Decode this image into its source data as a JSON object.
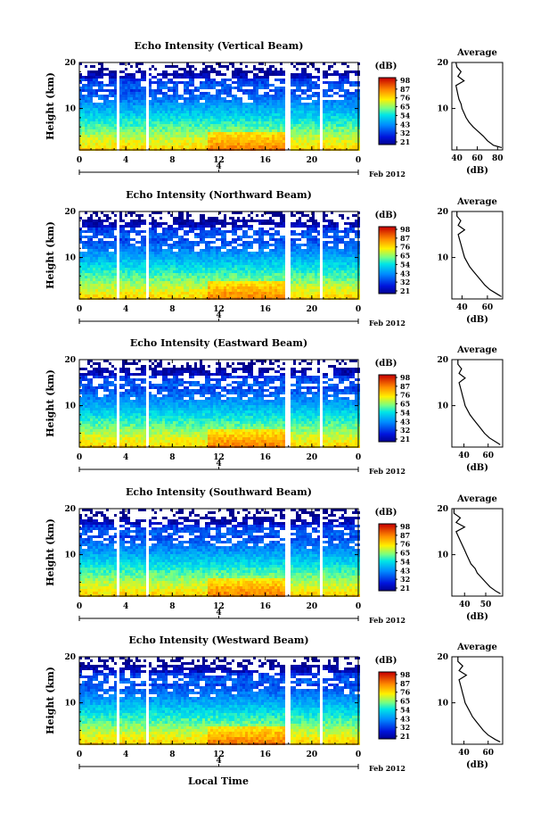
{
  "figure": {
    "date_label": "Feb 2012",
    "x_axis_title": "Local Time"
  },
  "chart_data": [
    {
      "type": "heatmap",
      "title": "Echo Intensity (Vertical Beam)",
      "ylabel": "Height (km)",
      "y_ticks": [
        "10",
        "20"
      ],
      "ylim": [
        1,
        20
      ],
      "x_ticks": [
        "0",
        "4",
        "8",
        "12",
        "16",
        "20",
        "0"
      ],
      "xlim": [
        0,
        24
      ],
      "date_marker": "4",
      "colorbar": {
        "unit": "(dB)",
        "ticks": [
          "98",
          "87",
          "76",
          "65",
          "54",
          "43",
          "32",
          "21"
        ],
        "range": [
          21,
          98
        ]
      },
      "gaps": [
        [
          3.2,
          3.5
        ],
        [
          5.7,
          6.0
        ],
        [
          17.6,
          18.1
        ],
        [
          20.6,
          20.9
        ]
      ],
      "profile": {
        "title": "Average",
        "xlabel": "(dB)",
        "x_ticks": [
          "40",
          "60",
          "80"
        ],
        "xlim": [
          35,
          85
        ],
        "heights": [
          1.5,
          2,
          3,
          4,
          5,
          6,
          7,
          8,
          9,
          10,
          11,
          12,
          13,
          14,
          15,
          16,
          17,
          18,
          19,
          20
        ],
        "values": [
          84,
          76,
          70,
          66,
          61,
          56,
          52,
          49,
          47,
          45,
          44,
          42,
          41,
          40,
          39,
          47,
          41,
          44,
          40,
          39
        ]
      }
    },
    {
      "type": "heatmap",
      "title": "Echo Intensity (Northward Beam)",
      "ylabel": "Height (km)",
      "y_ticks": [
        "10",
        "20"
      ],
      "ylim": [
        1,
        20
      ],
      "x_ticks": [
        "0",
        "4",
        "8",
        "12",
        "16",
        "20",
        "0"
      ],
      "xlim": [
        0,
        24
      ],
      "date_marker": "4",
      "colorbar": {
        "unit": "(dB)",
        "ticks": [
          "98",
          "87",
          "76",
          "65",
          "54",
          "43",
          "32",
          "21"
        ],
        "range": [
          21,
          98
        ]
      },
      "gaps": [
        [
          3.2,
          3.5
        ],
        [
          5.7,
          6.0
        ],
        [
          17.6,
          18.1
        ],
        [
          20.6,
          20.9
        ]
      ],
      "profile": {
        "title": "Average",
        "xlabel": "(dB)",
        "x_ticks": [
          "40",
          "60"
        ],
        "xlim": [
          32,
          72
        ],
        "heights": [
          1.5,
          2,
          3,
          4,
          5,
          6,
          7,
          8,
          9,
          10,
          11,
          12,
          13,
          14,
          15,
          16,
          17,
          18,
          19,
          20
        ],
        "values": [
          71,
          68,
          62,
          58,
          55,
          52,
          49,
          46,
          44,
          42,
          41,
          40,
          39,
          38,
          37,
          42,
          37,
          39,
          36,
          36
        ]
      }
    },
    {
      "type": "heatmap",
      "title": "Echo Intensity (Eastward Beam)",
      "ylabel": "Height (km)",
      "y_ticks": [
        "10",
        "20"
      ],
      "ylim": [
        1,
        20
      ],
      "x_ticks": [
        "0",
        "4",
        "8",
        "12",
        "16",
        "20",
        "0"
      ],
      "xlim": [
        0,
        24
      ],
      "date_marker": "4",
      "colorbar": {
        "unit": "(dB)",
        "ticks": [
          "98",
          "87",
          "76",
          "65",
          "54",
          "43",
          "32",
          "21"
        ],
        "range": [
          21,
          98
        ]
      },
      "gaps": [
        [
          3.2,
          3.5
        ],
        [
          5.7,
          6.0
        ],
        [
          17.6,
          18.1
        ],
        [
          20.6,
          20.9
        ]
      ],
      "profile": {
        "title": "Average",
        "xlabel": "(dB)",
        "x_ticks": [
          "40",
          "60"
        ],
        "xlim": [
          30,
          72
        ],
        "heights": [
          1.5,
          2,
          3,
          4,
          5,
          6,
          7,
          8,
          9,
          10,
          11,
          12,
          13,
          14,
          15,
          16,
          17,
          18,
          19,
          20
        ],
        "values": [
          70,
          67,
          61,
          57,
          54,
          51,
          48,
          45,
          43,
          41,
          40,
          39,
          38,
          37,
          36,
          41,
          36,
          38,
          35,
          35
        ]
      }
    },
    {
      "type": "heatmap",
      "title": "Echo Intensity (Southward Beam)",
      "ylabel": "Height (km)",
      "y_ticks": [
        "10",
        "20"
      ],
      "ylim": [
        1,
        20
      ],
      "x_ticks": [
        "0",
        "4",
        "8",
        "12",
        "16",
        "20",
        "0"
      ],
      "xlim": [
        0,
        24
      ],
      "date_marker": "4",
      "colorbar": {
        "unit": "(dB)",
        "ticks": [
          "98",
          "87",
          "76",
          "65",
          "54",
          "43",
          "32",
          "21"
        ],
        "range": [
          21,
          98
        ]
      },
      "gaps": [
        [
          3.2,
          3.5
        ],
        [
          5.7,
          6.0
        ],
        [
          17.6,
          18.1
        ],
        [
          20.6,
          20.9
        ]
      ],
      "profile": {
        "title": "Average",
        "xlabel": "(dB)",
        "x_ticks": [
          "40",
          "50"
        ],
        "xlim": [
          34,
          58
        ],
        "heights": [
          1.5,
          2,
          3,
          4,
          5,
          6,
          7,
          8,
          9,
          10,
          11,
          12,
          13,
          14,
          15,
          16,
          17,
          18,
          19,
          20
        ],
        "values": [
          57,
          55,
          52,
          50,
          48,
          46,
          45,
          43,
          42,
          41,
          40,
          39,
          38,
          37,
          36,
          40,
          36,
          38,
          35,
          35
        ]
      }
    },
    {
      "type": "heatmap",
      "title": "Echo Intensity (Westward Beam)",
      "ylabel": "Height (km)",
      "y_ticks": [
        "10",
        "20"
      ],
      "ylim": [
        1,
        20
      ],
      "x_ticks": [
        "0",
        "4",
        "8",
        "12",
        "16",
        "20",
        "0"
      ],
      "xlim": [
        0,
        24
      ],
      "date_marker": "4",
      "colorbar": {
        "unit": "(dB)",
        "ticks": [
          "98",
          "87",
          "76",
          "65",
          "54",
          "43",
          "32",
          "21"
        ],
        "range": [
          21,
          98
        ]
      },
      "gaps": [
        [
          3.2,
          3.5
        ],
        [
          5.7,
          6.0
        ],
        [
          17.6,
          18.1
        ],
        [
          20.6,
          20.9
        ]
      ],
      "profile": {
        "title": "Average",
        "xlabel": "(dB)",
        "x_ticks": [
          "40",
          "60"
        ],
        "xlim": [
          30,
          72
        ],
        "heights": [
          1.5,
          2,
          3,
          4,
          5,
          6,
          7,
          8,
          9,
          10,
          11,
          12,
          13,
          14,
          15,
          16,
          17,
          18,
          19,
          20
        ],
        "values": [
          70,
          66,
          60,
          56,
          53,
          50,
          47,
          45,
          43,
          41,
          40,
          39,
          38,
          37,
          36,
          42,
          36,
          39,
          35,
          35
        ]
      }
    }
  ]
}
